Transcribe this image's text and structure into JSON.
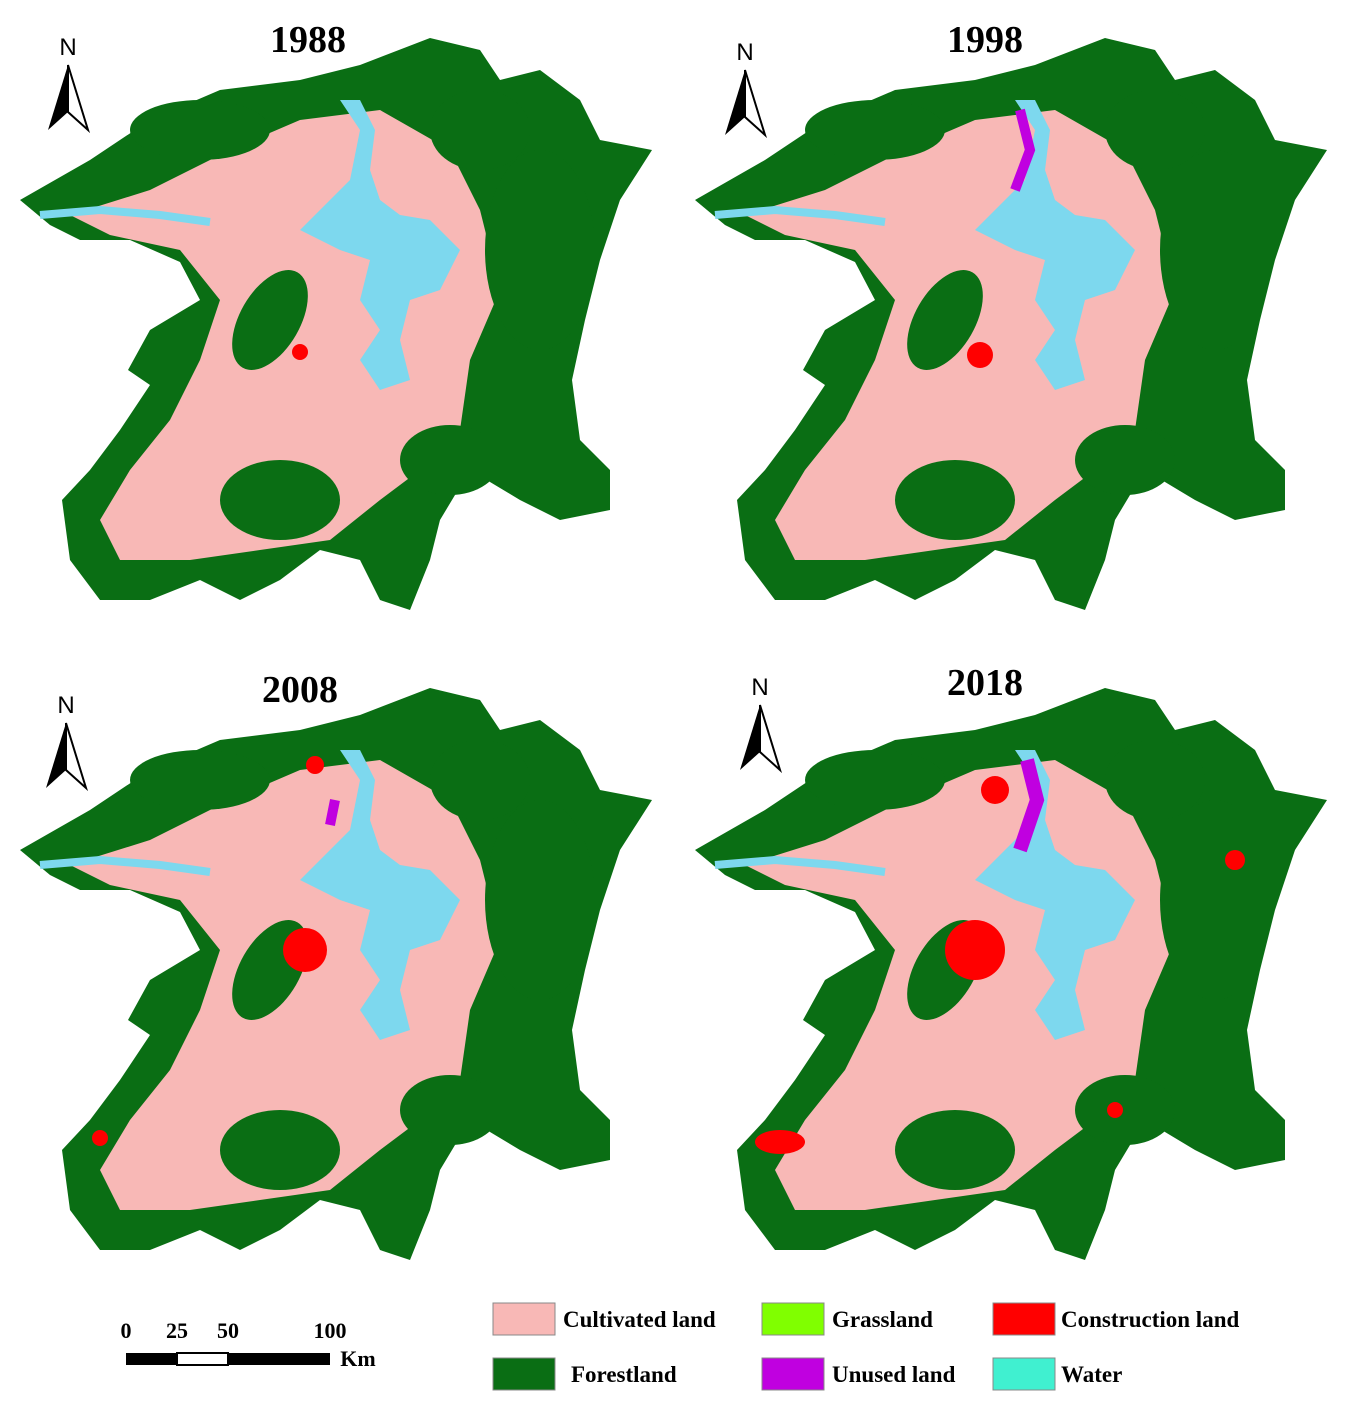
{
  "panels": [
    {
      "year": "1988",
      "north": "N"
    },
    {
      "year": "1998",
      "north": "N"
    },
    {
      "year": "2008",
      "north": "N"
    },
    {
      "year": "2018",
      "north": "N"
    }
  ],
  "scale_bar": {
    "labels": [
      "0",
      "25",
      "50",
      "100"
    ],
    "unit": "Km"
  },
  "legend": [
    {
      "label": "Cultivated land",
      "color": "#f8b8b6"
    },
    {
      "label": "Grassland",
      "color": "#80ff00"
    },
    {
      "label": "Construction land",
      "color": "#ff0000"
    },
    {
      "label": "Forestland",
      "color": "#0a6e14"
    },
    {
      "label": "Unused land",
      "color": "#c000e0"
    },
    {
      "label": "Water",
      "color": "#40f0d0"
    }
  ]
}
